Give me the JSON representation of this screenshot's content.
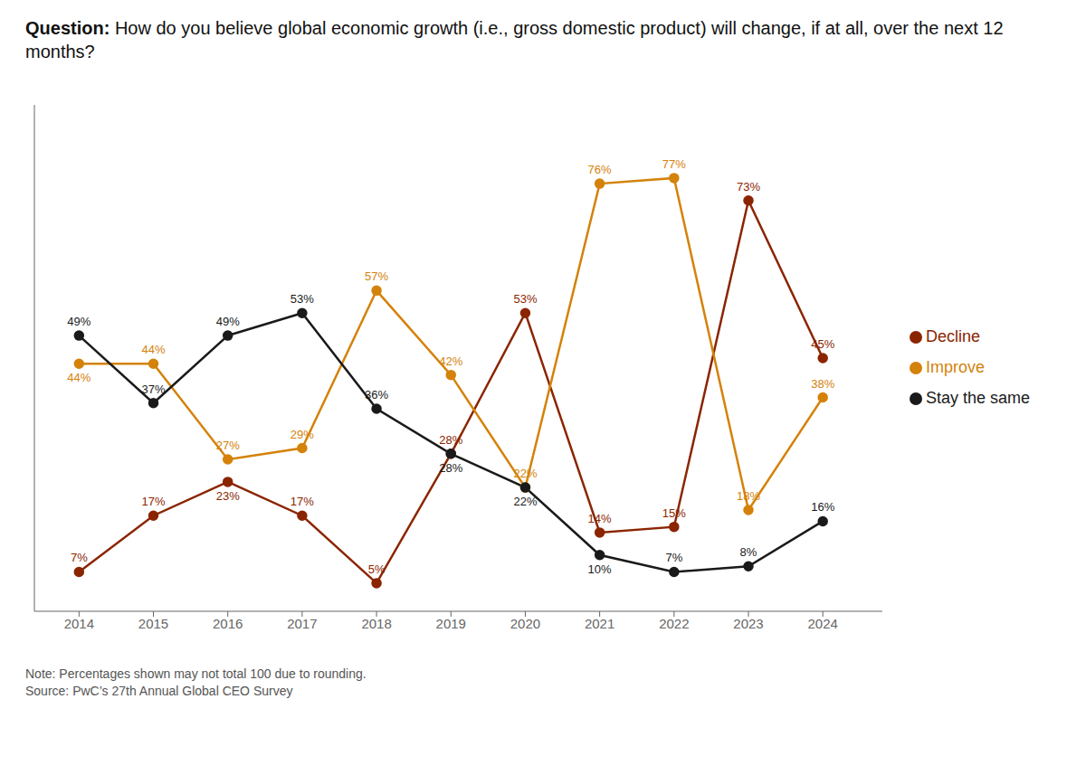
{
  "chart_data": {
    "type": "line",
    "title": "Question: How do you believe global economic growth (i.e., gross domestic product) will change, if at all, over the next 12 months?",
    "annotations": [
      "Note: Percentages shown may not total 100 due to rounding.",
      "Source: PwC’s 27th Annual Global CEO Survey"
    ],
    "x": [
      2014,
      2015,
      2016,
      2017,
      2018,
      2019,
      2020,
      2021,
      2022,
      2023,
      2024
    ],
    "xlim": [
      2013.4,
      2024.8
    ],
    "xticks": [
      2014,
      2015,
      2016,
      2017,
      2018,
      2019,
      2020,
      2021,
      2022,
      2023,
      2024
    ],
    "ylim": [
      0,
      90
    ],
    "tick_labels": "x",
    "grid": false,
    "legend": "right",
    "data_labels": true,
    "marker": "circle",
    "series": [
      {
        "name": "Decline",
        "color": "#8B2500",
        "values": [
          7,
          17,
          23,
          17,
          5,
          28,
          53,
          14,
          15,
          73,
          45
        ],
        "value_labels": [
          "7%",
          "17%",
          "23%",
          "17%",
          "5%",
          "28%",
          "53%",
          "14%",
          "15%",
          "73%",
          "45%"
        ]
      },
      {
        "name": "Improve",
        "color": "#D4820A",
        "values": [
          44,
          44,
          27,
          29,
          57,
          42,
          22,
          76,
          77,
          18,
          38
        ],
        "value_labels": [
          "44%",
          "44%",
          "27%",
          "29%",
          "57%",
          "42%",
          "22%",
          "76%",
          "77%",
          "18%",
          "38%"
        ]
      },
      {
        "name": "Stay the same",
        "color": "#1a1a1a",
        "values": [
          49,
          37,
          49,
          53,
          36,
          28,
          22,
          10,
          7,
          8,
          16
        ],
        "value_labels": [
          "49%",
          "37%",
          "49%",
          "53%",
          "36%",
          "28%",
          "22%",
          "10%",
          "7%",
          "8%",
          "16%"
        ]
      }
    ]
  }
}
